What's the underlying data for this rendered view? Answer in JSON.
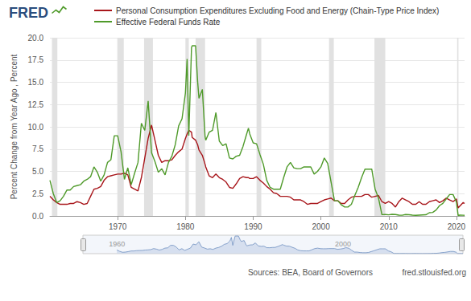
{
  "chart_data": {
    "type": "line",
    "logo": "FRED",
    "y_label": "Percent Change from Year Ago , Percent",
    "source": "Sources: BEA, Board of Governors",
    "credit": "fred.stlouisfed.org",
    "x": [
      1960,
      1960.5,
      1961,
      1961.5,
      1962,
      1962.5,
      1963,
      1963.5,
      1964,
      1964.5,
      1965,
      1965.5,
      1966,
      1966.5,
      1967,
      1967.5,
      1968,
      1968.5,
      1969,
      1969.5,
      1970,
      1970.5,
      1971,
      1971.5,
      1972,
      1972.5,
      1973,
      1973.5,
      1974,
      1974.5,
      1975,
      1975.5,
      1976,
      1976.5,
      1977,
      1977.5,
      1978,
      1978.5,
      1979,
      1979.5,
      1980,
      1980.25,
      1980.5,
      1980.9,
      1981,
      1981.5,
      1981.8,
      1982,
      1982.5,
      1982.9,
      1983,
      1983.5,
      1984,
      1984.5,
      1985,
      1985.5,
      1986,
      1986.5,
      1987,
      1987.5,
      1988,
      1988.5,
      1989,
      1989.3,
      1989.5,
      1990,
      1990.5,
      1991,
      1991.5,
      1992,
      1992.5,
      1993,
      1993.5,
      1994,
      1994.5,
      1995,
      1995.5,
      1996,
      1996.5,
      1997,
      1997.5,
      1998,
      1998.5,
      1999,
      1999.5,
      2000,
      2000.5,
      2001,
      2001.5,
      2002,
      2002.5,
      2003,
      2003.5,
      2004,
      2004.5,
      2005,
      2005.5,
      2006,
      2006.5,
      2007,
      2007.5,
      2008,
      2008.5,
      2009,
      2009.5,
      2010,
      2010.5,
      2011,
      2011.5,
      2012,
      2012.5,
      2013,
      2013.5,
      2014,
      2014.5,
      2015,
      2015.5,
      2016,
      2016.5,
      2017,
      2017.5,
      2018,
      2018.5,
      2019,
      2019.5,
      2020,
      2020.25,
      2020.5,
      2021,
      2021.2
    ],
    "series": [
      {
        "name": "Personal Consumption Expenditures Excluding Food and Energy (Chain-Type Price Index)",
        "color": "#a8161b",
        "line_style": "solid",
        "values": [
          2.2,
          1.8,
          1.5,
          1.3,
          1.3,
          1.3,
          1.4,
          1.4,
          1.6,
          1.5,
          1.3,
          1.4,
          2.2,
          3.0,
          3.1,
          3.3,
          4.0,
          4.4,
          4.5,
          4.6,
          4.7,
          4.7,
          4.8,
          4.6,
          3.2,
          3.0,
          2.8,
          4.3,
          6.5,
          8.7,
          10.2,
          8.5,
          6.8,
          6.0,
          6.2,
          6.2,
          6.3,
          6.8,
          7.2,
          7.5,
          8.7,
          9.2,
          9.6,
          9.4,
          8.8,
          8.5,
          8.0,
          7.4,
          6.8,
          5.8,
          5.5,
          4.5,
          4.3,
          4.7,
          4.3,
          4.1,
          3.8,
          3.2,
          3.1,
          3.6,
          4.2,
          4.4,
          4.3,
          4.3,
          4.2,
          4.2,
          4.4,
          4.0,
          3.7,
          3.3,
          3.0,
          2.6,
          2.5,
          2.2,
          2.2,
          2.2,
          2.1,
          1.8,
          1.8,
          1.8,
          1.6,
          1.3,
          1.4,
          1.4,
          1.4,
          1.6,
          1.8,
          1.9,
          2.0,
          1.7,
          1.7,
          1.4,
          1.4,
          1.8,
          2.1,
          2.2,
          2.2,
          2.2,
          2.4,
          2.4,
          2.1,
          2.2,
          2.3,
          1.6,
          1.4,
          1.6,
          1.4,
          1.0,
          1.6,
          2.0,
          1.8,
          1.6,
          1.3,
          1.3,
          1.6,
          1.3,
          1.3,
          1.6,
          1.7,
          1.8,
          1.5,
          1.7,
          2.0,
          1.8,
          1.6,
          1.9,
          0.9,
          1.1,
          1.5,
          1.4
        ]
      },
      {
        "name": "Effective Federal Funds Rate",
        "color": "#4f9a2a",
        "line_style": "solid",
        "values": [
          4.0,
          2.5,
          1.5,
          1.7,
          2.2,
          2.9,
          2.9,
          3.3,
          3.4,
          3.5,
          3.9,
          4.1,
          4.4,
          5.5,
          4.9,
          3.9,
          4.6,
          6.0,
          6.3,
          9.0,
          9.0,
          7.2,
          4.1,
          5.4,
          3.5,
          4.8,
          6.0,
          10.4,
          9.6,
          12.9,
          7.1,
          6.1,
          4.9,
          5.3,
          4.6,
          6.0,
          6.7,
          8.0,
          10.1,
          10.9,
          13.8,
          17.6,
          9.0,
          18.9,
          19.1,
          19.1,
          15.1,
          13.2,
          14.2,
          8.9,
          8.5,
          9.4,
          9.6,
          11.6,
          8.4,
          7.9,
          8.1,
          6.5,
          6.4,
          6.7,
          6.8,
          7.8,
          9.1,
          9.85,
          9.2,
          8.2,
          8.1,
          6.9,
          5.8,
          4.0,
          3.2,
          3.0,
          3.0,
          3.0,
          4.3,
          5.5,
          6.0,
          5.4,
          5.3,
          5.3,
          5.5,
          5.5,
          5.5,
          4.7,
          5.0,
          5.5,
          6.5,
          5.9,
          3.8,
          1.7,
          1.7,
          1.25,
          1.0,
          1.0,
          1.3,
          2.3,
          3.2,
          4.3,
          5.25,
          5.25,
          5.25,
          3.0,
          2.0,
          0.15,
          0.16,
          0.12,
          0.18,
          0.16,
          0.09,
          0.08,
          0.16,
          0.14,
          0.09,
          0.07,
          0.09,
          0.11,
          0.13,
          0.36,
          0.39,
          0.66,
          1.15,
          1.41,
          1.91,
          2.4,
          2.4,
          1.55,
          0.05,
          0.09,
          0.08,
          0.07
        ]
      }
    ],
    "xlim": [
      1960,
      2021.2
    ],
    "xticks": [
      1970,
      1980,
      1990,
      2000,
      2010,
      2020
    ],
    "ylim": [
      0,
      20
    ],
    "yticks": [
      {
        "value": 0,
        "label": "0.0"
      },
      2.5,
      {
        "value": 5,
        "label": "5.0"
      },
      7.5,
      {
        "value": 10,
        "label": "10.0"
      },
      12.5,
      {
        "value": 15,
        "label": "15.0"
      },
      17.5,
      {
        "value": 20,
        "label": "20.0"
      }
    ],
    "grid": true,
    "legend": "top-left",
    "recessions": [
      [
        1960.3,
        1961.1
      ],
      [
        1969.95,
        1970.9
      ],
      [
        1973.9,
        1975.2
      ],
      [
        1980.0,
        1980.5
      ],
      [
        1981.5,
        1982.9
      ],
      [
        1990.5,
        1991.2
      ],
      [
        2001.2,
        2001.9
      ],
      [
        2007.9,
        2009.5
      ],
      [
        2020.1,
        2020.3
      ]
    ],
    "navigator": {
      "series": "Effective Federal Funds Rate",
      "xlim": [
        1954,
        2021.2
      ],
      "xticks": [
        1960,
        2000
      ],
      "ylim": [
        0,
        20
      ],
      "tick_labels": "x"
    }
  }
}
